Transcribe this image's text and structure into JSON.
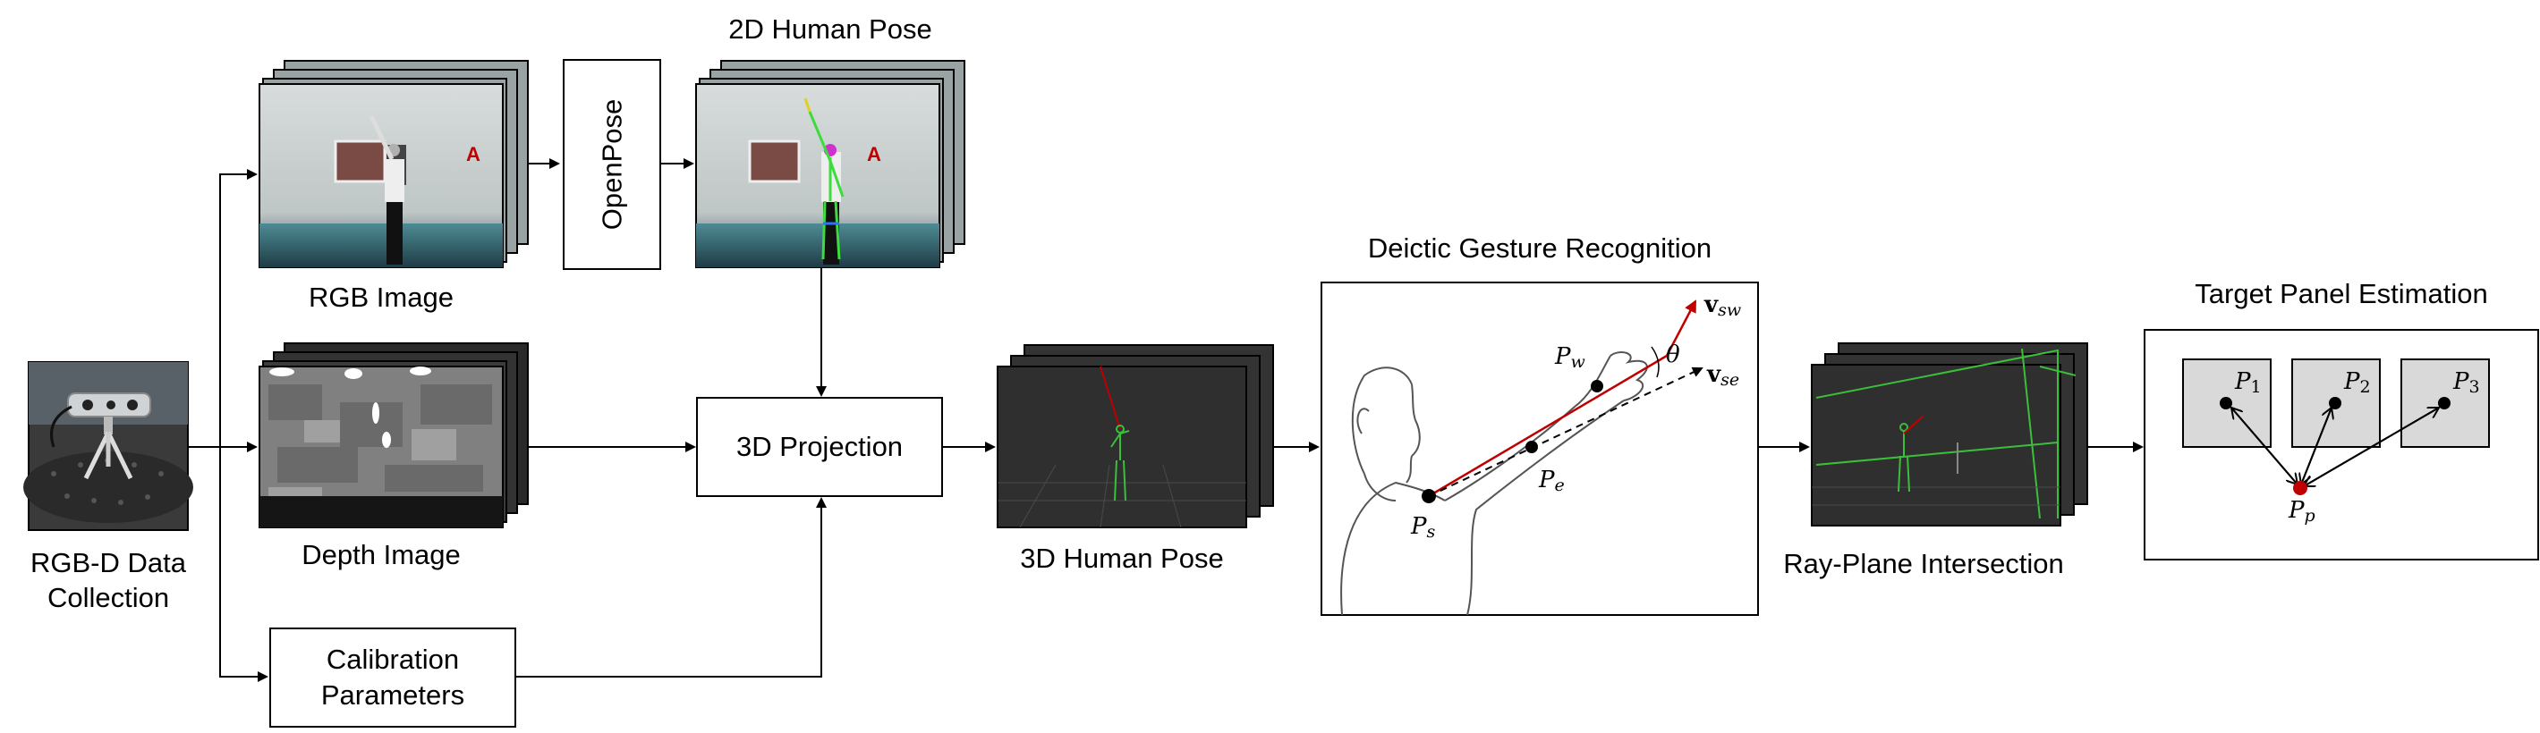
{
  "labels": {
    "rgbd_collection_line1": "RGB-D Data",
    "rgbd_collection_line2": "Collection",
    "rgb_image": "RGB Image",
    "depth_image": "Depth Image",
    "openpose": "OpenPose",
    "human_pose_2d": "2D Human Pose",
    "projection_3d": "3D Projection",
    "calibration_line1": "Calibration",
    "calibration_line2": "Parameters",
    "human_pose_3d": "3D Human Pose",
    "deictic_gesture": "Deictic Gesture Recognition",
    "ray_plane": "Ray-Plane Intersection",
    "target_panel": "Target Panel Estimation"
  },
  "gesture_math": {
    "vsw_bold": "v",
    "vsw_sub": "sw",
    "vse_bold": "v",
    "vse_sub": "se",
    "theta": "θ",
    "pw": "P",
    "pw_sub": "w",
    "pe": "P",
    "pe_sub": "e",
    "ps": "P",
    "ps_sub": "s"
  },
  "panel_math": {
    "p1": "P",
    "p1_sub": "1",
    "p2": "P",
    "p2_sub": "2",
    "p3": "P",
    "p3_sub": "3",
    "pp": "P",
    "pp_sub": "p"
  },
  "colors": {
    "ray_red": "#c00000",
    "skeleton_green": "#3bbf3b",
    "panel_gray": "#d9d9d9",
    "dark_frame": "#2b2b2b"
  }
}
